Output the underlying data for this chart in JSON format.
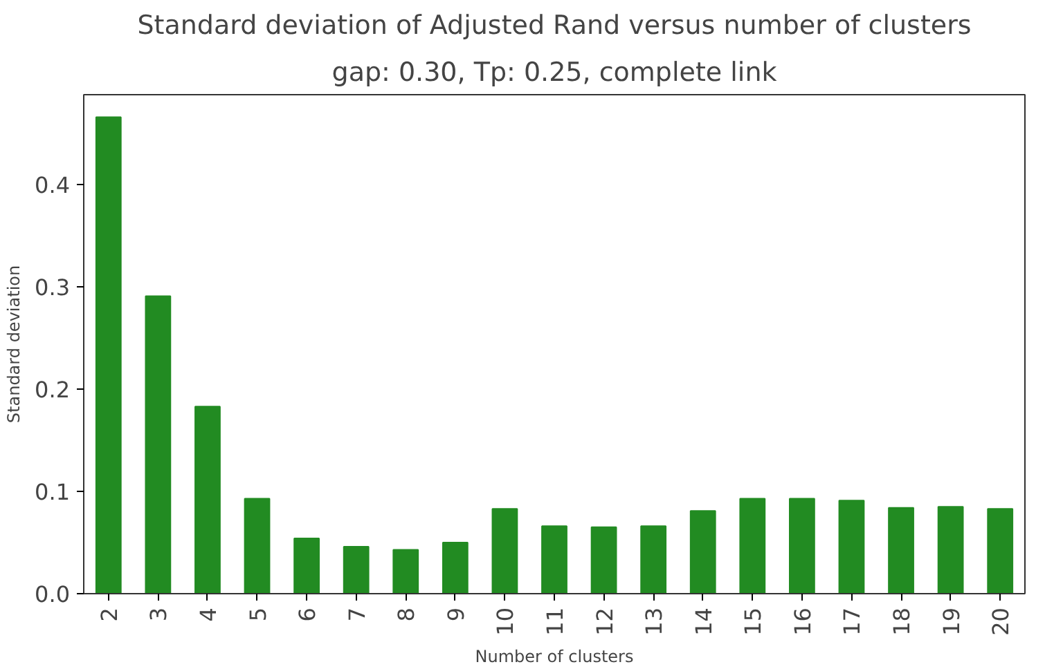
{
  "chart_data": {
    "type": "bar",
    "title": "Standard deviation of Adjusted Rand versus number of clusters",
    "subtitle": "gap: 0.30, Tp: 0.25, complete link",
    "xlabel": "Number of clusters",
    "ylabel": "Standard deviation",
    "categories": [
      "2",
      "3",
      "4",
      "5",
      "6",
      "7",
      "8",
      "9",
      "10",
      "11",
      "12",
      "13",
      "14",
      "15",
      "16",
      "17",
      "18",
      "19",
      "20"
    ],
    "values": [
      0.466,
      0.291,
      0.183,
      0.093,
      0.054,
      0.046,
      0.043,
      0.05,
      0.083,
      0.066,
      0.065,
      0.066,
      0.081,
      0.093,
      0.093,
      0.091,
      0.084,
      0.085,
      0.083
    ],
    "color": "#228b22",
    "ylim": [
      0,
      0.488
    ],
    "yticks": [
      {
        "value": 0,
        "label": "0.0"
      },
      {
        "value": 0.1,
        "label": "0.1"
      },
      {
        "value": 0.2,
        "label": "0.2"
      },
      {
        "value": 0.3,
        "label": "0.3"
      },
      {
        "value": 0.4,
        "label": "0.4"
      }
    ],
    "grid": false
  }
}
